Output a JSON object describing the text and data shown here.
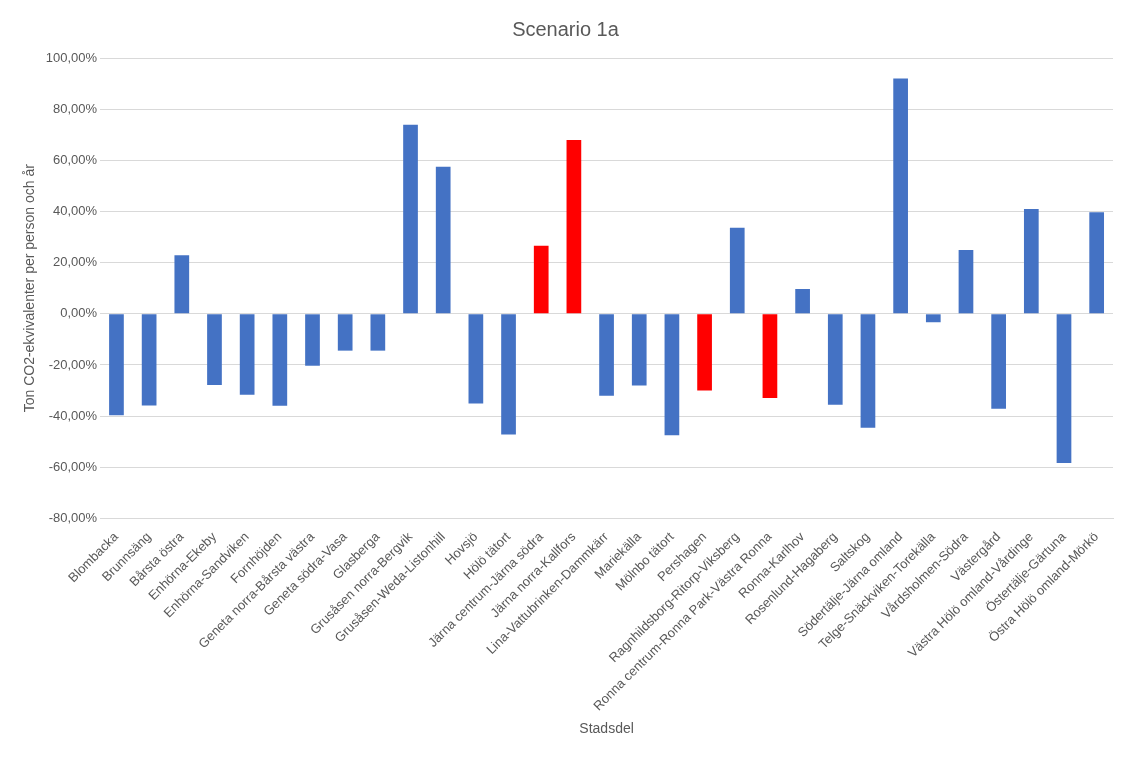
{
  "chart_data": {
    "type": "bar",
    "title": "Scenario 1a",
    "xlabel": "Stadsdel",
    "ylabel": "Ton CO2-ekvivalenter per person och år",
    "categories": [
      "Blombacka",
      "Brunnsäng",
      "Bårsta östra",
      "Enhörna-Ekeby",
      "Enhörna-Sandviken",
      "Fornhöjden",
      "Geneta norra-Bårsta västra",
      "Geneta södra-Vasa",
      "Glasberga",
      "Grusåsen norra-Bergvik",
      "Grusåsen-Weda-Listonhill",
      "Hovsjö",
      "Hölö tätort",
      "Järna centrum-Järna södra",
      "Järna norra-Kallfors",
      "Lina-Vattubrinken-Dammkärr",
      "Mariekälla",
      "Mölnbo tätort",
      "Pershagen",
      "Ragnhildsborg-Ritorp-Viksberg",
      "Ronna centrum-Ronna Park-Västra Ronna",
      "Ronna-Karlhov",
      "Rosenlund-Hagaberg",
      "Saltskog",
      "Södertälje-Järna omland",
      "Telge-Snäckviken-Torekälla",
      "Vårdsholmen-Södra",
      "Västergård",
      "Västra Hölö omland-Vårdinge",
      "Östertälje-Gärtuna",
      "Östra Hölö omland-Mörkö"
    ],
    "values": [
      -39.7,
      -35.8,
      22.9,
      -27.8,
      -31.6,
      -35.9,
      -20.3,
      -14.4,
      -14.4,
      73.9,
      57.5,
      -35.1,
      -47.2,
      26.6,
      67.9,
      -32,
      -28,
      -47.5,
      -30,
      33.6,
      -32.9,
      9.7,
      -35.6,
      -44.5,
      92,
      -3.3,
      24.9,
      -37.1,
      41,
      -58.3,
      39.7
    ],
    "colors": [
      "#4472c4",
      "#4472c4",
      "#4472c4",
      "#4472c4",
      "#4472c4",
      "#4472c4",
      "#4472c4",
      "#4472c4",
      "#4472c4",
      "#4472c4",
      "#4472c4",
      "#4472c4",
      "#4472c4",
      "#ff0000",
      "#ff0000",
      "#4472c4",
      "#4472c4",
      "#4472c4",
      "#ff0000",
      "#4472c4",
      "#ff0000",
      "#4472c4",
      "#4472c4",
      "#4472c4",
      "#4472c4",
      "#4472c4",
      "#4472c4",
      "#4472c4",
      "#4472c4",
      "#4472c4",
      "#4472c4"
    ],
    "ylim": [
      -80,
      100
    ],
    "yticks": [
      {
        "value": -80,
        "label": "-80,00%"
      },
      {
        "value": -60,
        "label": "-60,00%"
      },
      {
        "value": -40,
        "label": "-40,00%"
      },
      {
        "value": -20,
        "label": "-20,00%"
      },
      {
        "value": 0,
        "label": "0,00%"
      },
      {
        "value": 20,
        "label": "20,00%"
      },
      {
        "value": 40,
        "label": "40,00%"
      },
      {
        "value": 60,
        "label": "60,00%"
      },
      {
        "value": 80,
        "label": "80,00%"
      },
      {
        "value": 100,
        "label": "100,00%"
      }
    ],
    "grid": "y",
    "legend": false
  }
}
